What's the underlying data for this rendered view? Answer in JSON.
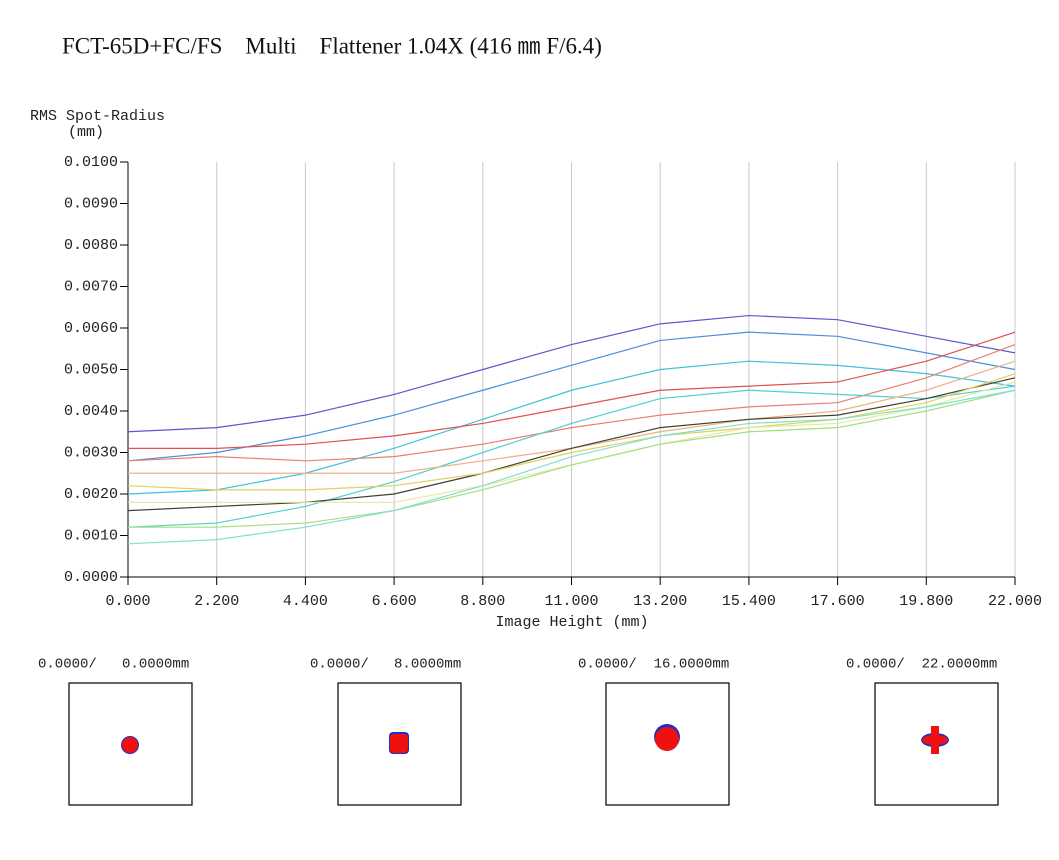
{
  "chart_data": {
    "type": "line",
    "title": "FCT-65D+FC/FS　Multi　Flattener 1.04X (416 ㎜ F/6.4)",
    "y_label": "RMS Spot-Radius",
    "y_label_unit": "(mm)",
    "x_label": "Image Height (mm)",
    "x": [
      0,
      2.2,
      4.4,
      6.6,
      8.8,
      11,
      13.2,
      15.4,
      17.6,
      19.8,
      22
    ],
    "xlim": [
      0,
      22
    ],
    "xticks": [
      {
        "value": 0,
        "label": "0.000"
      },
      {
        "value": 2.2,
        "label": "2.200"
      },
      {
        "value": 4.4,
        "label": "4.400"
      },
      {
        "value": 6.6,
        "label": "6.600"
      },
      {
        "value": 8.8,
        "label": "8.800"
      },
      {
        "value": 11,
        "label": "11.000"
      },
      {
        "value": 13.2,
        "label": "13.200"
      },
      {
        "value": 15.4,
        "label": "15.400"
      },
      {
        "value": 17.6,
        "label": "17.600"
      },
      {
        "value": 19.8,
        "label": "19.800"
      },
      {
        "value": 22,
        "label": "22.000"
      }
    ],
    "ylim": [
      0,
      0.01
    ],
    "yticks": [
      {
        "value": 0,
        "label": "0.0000"
      },
      {
        "value": 0.001,
        "label": "0.0010"
      },
      {
        "value": 0.002,
        "label": "0.0020"
      },
      {
        "value": 0.003,
        "label": "0.0030"
      },
      {
        "value": 0.004,
        "label": "0.0040"
      },
      {
        "value": 0.005,
        "label": "0.0050"
      },
      {
        "value": 0.006,
        "label": "0.0060"
      },
      {
        "value": 0.007,
        "label": "0.0070"
      },
      {
        "value": 0.008,
        "label": "0.0080"
      },
      {
        "value": 0.009,
        "label": "0.0090"
      },
      {
        "value": 0.01,
        "label": "0.0100"
      }
    ],
    "grid": "x",
    "series": [
      {
        "color": "#5858d0",
        "values": [
          0.0035,
          0.0036,
          0.0039,
          0.0044,
          0.005,
          0.0056,
          0.0061,
          0.0063,
          0.0062,
          0.0058,
          0.0054
        ]
      },
      {
        "color": "#4a90d9",
        "values": [
          0.0028,
          0.003,
          0.0034,
          0.0039,
          0.0045,
          0.0051,
          0.0057,
          0.0059,
          0.0058,
          0.0054,
          0.005
        ]
      },
      {
        "color": "#40c0e0",
        "values": [
          0.002,
          0.0021,
          0.0025,
          0.0031,
          0.0038,
          0.0045,
          0.005,
          0.0052,
          0.0051,
          0.0049,
          0.0046
        ]
      },
      {
        "color": "#e05050",
        "values": [
          0.0031,
          0.0031,
          0.0032,
          0.0034,
          0.0037,
          0.0041,
          0.0045,
          0.0046,
          0.0047,
          0.0052,
          0.0059
        ]
      },
      {
        "color": "#e88070",
        "values": [
          0.0028,
          0.0029,
          0.0028,
          0.0029,
          0.0032,
          0.0036,
          0.0039,
          0.0041,
          0.0042,
          0.0048,
          0.0056
        ]
      },
      {
        "color": "#50d0d0",
        "values": [
          0.0012,
          0.0013,
          0.0017,
          0.0023,
          0.003,
          0.0037,
          0.0043,
          0.0045,
          0.0044,
          0.0043,
          0.0046
        ]
      },
      {
        "color": "#f0b080",
        "values": [
          0.0025,
          0.0025,
          0.0025,
          0.0025,
          0.0028,
          0.0031,
          0.0035,
          0.0038,
          0.004,
          0.0045,
          0.0052
        ]
      },
      {
        "color": "#404030",
        "values": [
          0.0016,
          0.0017,
          0.0018,
          0.002,
          0.0025,
          0.0031,
          0.0036,
          0.0038,
          0.0039,
          0.0043,
          0.0048
        ]
      },
      {
        "color": "#e0d060",
        "values": [
          0.0022,
          0.0021,
          0.0021,
          0.0022,
          0.0025,
          0.003,
          0.0034,
          0.0036,
          0.0038,
          0.0042,
          0.0049
        ]
      },
      {
        "color": "#e8e8a0",
        "values": [
          0.0018,
          0.0018,
          0.0018,
          0.0018,
          0.0022,
          0.0027,
          0.0032,
          0.0036,
          0.0037,
          0.0041,
          0.0047
        ]
      },
      {
        "color": "#a0e080",
        "values": [
          0.0012,
          0.0012,
          0.0013,
          0.0016,
          0.0021,
          0.0027,
          0.0032,
          0.0035,
          0.0036,
          0.004,
          0.0045
        ]
      },
      {
        "color": "#80e0d0",
        "values": [
          0.0008,
          0.0009,
          0.0012,
          0.0016,
          0.0022,
          0.0029,
          0.0034,
          0.0037,
          0.0038,
          0.0041,
          0.0045
        ]
      }
    ]
  },
  "spot_diagrams": [
    {
      "label": "0.0000/   0.0000mm"
    },
    {
      "label": "0.0000/   8.0000mm"
    },
    {
      "label": "0.0000/  16.0000mm"
    },
    {
      "label": "0.0000/  22.0000mm"
    }
  ]
}
